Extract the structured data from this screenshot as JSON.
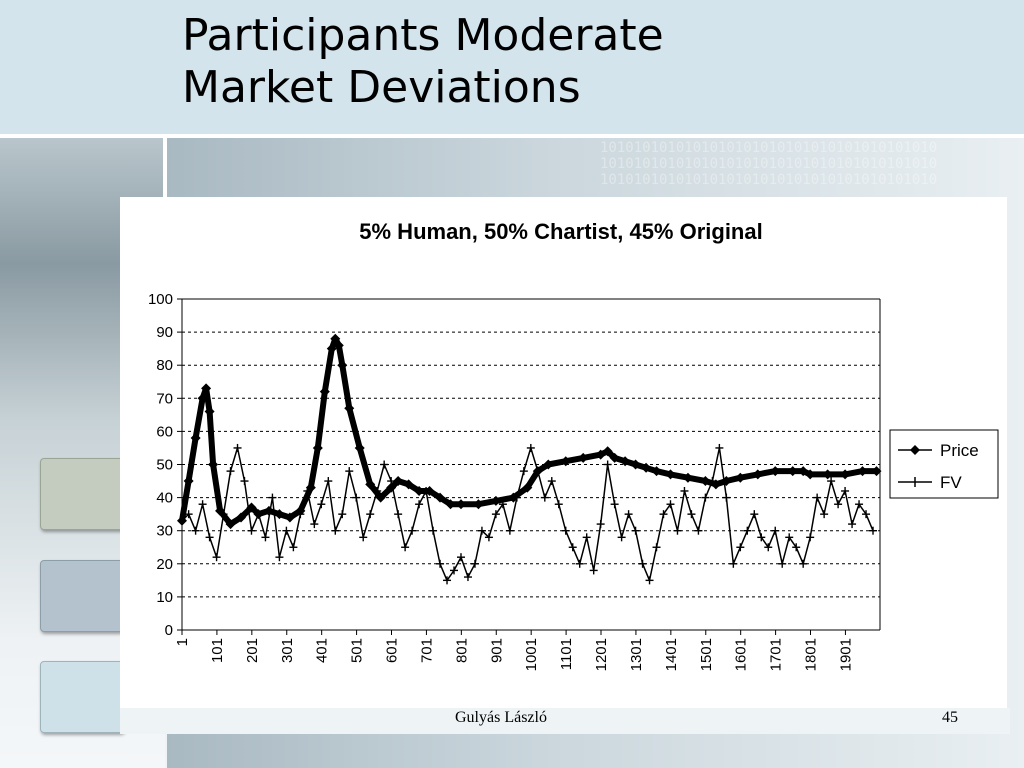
{
  "slide": {
    "title_line1": "Participants Moderate",
    "title_line2": "Market Deviations",
    "footer_author": "Gulyás László",
    "page_number": "45",
    "background_pattern": "1010101010101010101010101010101010101010"
  },
  "colors": {
    "title_band": "#d3e4ec",
    "chart_background": "#ffffff",
    "series_price": "#000000",
    "series_fv": "#000000"
  },
  "chart_data": {
    "type": "line",
    "title": "5% Human, 50% Chartist, 45% Original",
    "xlabel": "",
    "ylabel": "",
    "xlim": [
      1,
      2000
    ],
    "ylim": [
      0,
      100
    ],
    "y_ticks": [
      0,
      10,
      20,
      30,
      40,
      50,
      60,
      70,
      80,
      90,
      100
    ],
    "x_tick_labels": [
      "1",
      "101",
      "201",
      "301",
      "401",
      "501",
      "601",
      "701",
      "801",
      "901",
      "1001",
      "1101",
      "1201",
      "1301",
      "1401",
      "1501",
      "1601",
      "1701",
      "1801",
      "1901"
    ],
    "grid": "horizontal dashed",
    "legend_position": "right",
    "series": [
      {
        "name": "Price",
        "marker": "diamond",
        "x": [
          1,
          20,
          40,
          60,
          70,
          80,
          90,
          110,
          140,
          170,
          200,
          220,
          250,
          280,
          310,
          340,
          370,
          390,
          410,
          430,
          440,
          450,
          460,
          480,
          510,
          540,
          570,
          600,
          620,
          650,
          680,
          710,
          740,
          770,
          800,
          850,
          900,
          950,
          990,
          1020,
          1050,
          1100,
          1150,
          1200,
          1220,
          1240,
          1270,
          1300,
          1330,
          1360,
          1400,
          1450,
          1500,
          1530,
          1560,
          1600,
          1650,
          1700,
          1750,
          1780,
          1800,
          1850,
          1900,
          1950,
          1990
        ],
        "y": [
          33,
          45,
          58,
          70,
          73,
          66,
          50,
          36,
          32,
          34,
          37,
          35,
          36,
          35,
          34,
          36,
          43,
          55,
          72,
          85,
          88,
          86,
          80,
          67,
          55,
          44,
          40,
          43,
          45,
          44,
          42,
          42,
          40,
          38,
          38,
          38,
          39,
          40,
          43,
          48,
          50,
          51,
          52,
          53,
          54,
          52,
          51,
          50,
          49,
          48,
          47,
          46,
          45,
          44,
          45,
          46,
          47,
          48,
          48,
          48,
          47,
          47,
          47,
          48,
          48
        ]
      },
      {
        "name": "FV",
        "marker": "plus",
        "x": [
          1,
          20,
          40,
          60,
          80,
          100,
          120,
          140,
          160,
          180,
          200,
          220,
          240,
          260,
          280,
          300,
          320,
          340,
          360,
          380,
          400,
          420,
          440,
          460,
          480,
          500,
          520,
          540,
          560,
          580,
          600,
          620,
          640,
          660,
          680,
          700,
          720,
          740,
          760,
          780,
          800,
          820,
          840,
          860,
          880,
          900,
          920,
          940,
          960,
          980,
          1000,
          1020,
          1040,
          1060,
          1080,
          1100,
          1120,
          1140,
          1160,
          1180,
          1200,
          1220,
          1240,
          1260,
          1280,
          1300,
          1320,
          1340,
          1360,
          1380,
          1400,
          1420,
          1440,
          1460,
          1480,
          1500,
          1520,
          1540,
          1560,
          1580,
          1600,
          1620,
          1640,
          1660,
          1680,
          1700,
          1720,
          1740,
          1760,
          1780,
          1800,
          1820,
          1840,
          1860,
          1880,
          1900,
          1920,
          1940,
          1960,
          1980
        ],
        "y": [
          33,
          35,
          30,
          38,
          28,
          22,
          35,
          48,
          55,
          45,
          30,
          35,
          28,
          40,
          22,
          30,
          25,
          35,
          42,
          32,
          38,
          45,
          30,
          35,
          48,
          40,
          28,
          35,
          42,
          50,
          45,
          35,
          25,
          30,
          38,
          42,
          30,
          20,
          15,
          18,
          22,
          16,
          20,
          30,
          28,
          35,
          38,
          30,
          40,
          48,
          55,
          48,
          40,
          45,
          38,
          30,
          25,
          20,
          28,
          18,
          32,
          50,
          38,
          28,
          35,
          30,
          20,
          15,
          25,
          35,
          38,
          30,
          42,
          35,
          30,
          40,
          45,
          55,
          40,
          20,
          25,
          30,
          35,
          28,
          25,
          30,
          20,
          28,
          25,
          20,
          28,
          40,
          35,
          45,
          38,
          42,
          32,
          38,
          35,
          30
        ]
      }
    ]
  }
}
